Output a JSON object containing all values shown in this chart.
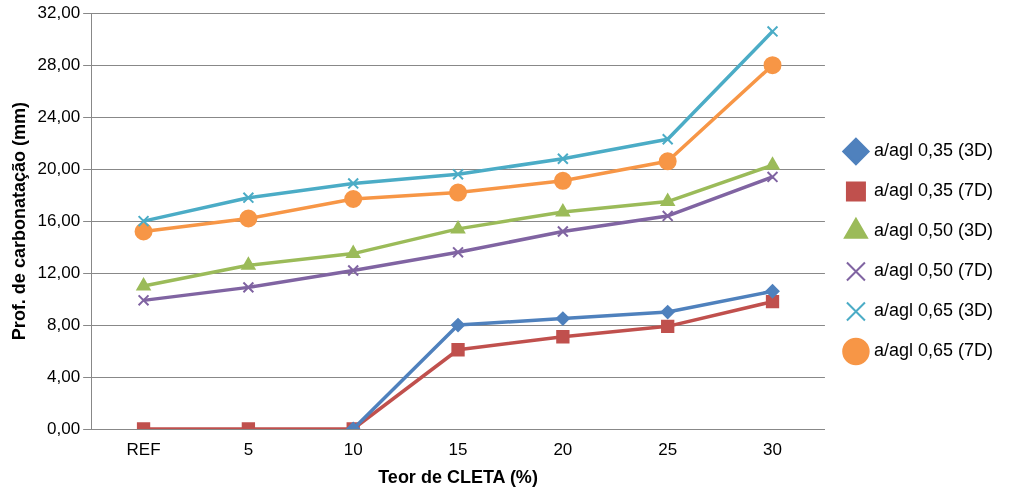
{
  "chart_data": {
    "type": "line",
    "xlabel": "Teor de CLETA (%)",
    "ylabel": "Prof. de carbonatação (mm)",
    "categories": [
      "REF",
      "5",
      "10",
      "15",
      "20",
      "25",
      "30"
    ],
    "series": [
      {
        "name": "a/agl 0,35 (3D)",
        "color": "#4f81bd",
        "marker": "diamond",
        "values": [
          null,
          null,
          0,
          8.0,
          8.5,
          9.0,
          10.6
        ]
      },
      {
        "name": "a/agl 0,35 (7D)",
        "color": "#c0504d",
        "marker": "square",
        "values": [
          0,
          0,
          0,
          6.1,
          7.1,
          7.9,
          9.8
        ]
      },
      {
        "name": "a/agl 0,50 (3D)",
        "color": "#9bbb59",
        "marker": "triangle",
        "values": [
          11.0,
          12.6,
          13.5,
          15.4,
          16.7,
          17.5,
          20.3
        ]
      },
      {
        "name": "a/agl 0,50 (7D)",
        "color": "#8064a2",
        "marker": "cross",
        "values": [
          9.9,
          10.9,
          12.2,
          13.6,
          15.2,
          16.4,
          19.4
        ]
      },
      {
        "name": "a/agl 0,65 (3D)",
        "color": "#4bacc6",
        "marker": "cross",
        "values": [
          16.0,
          17.8,
          18.9,
          19.6,
          20.8,
          22.3,
          30.6
        ]
      },
      {
        "name": "a/agl 0,65 (7D)",
        "color": "#f79646",
        "marker": "circle",
        "values": [
          15.2,
          16.2,
          17.7,
          18.2,
          19.1,
          20.6,
          28.0
        ]
      }
    ],
    "ylim": [
      0,
      32
    ],
    "yticks": [
      {
        "value": 0,
        "label": "0,00"
      },
      {
        "value": 4,
        "label": "4,00"
      },
      {
        "value": 8,
        "label": "8,00"
      },
      {
        "value": 12,
        "label": "12,00"
      },
      {
        "value": 16,
        "label": "16,00"
      },
      {
        "value": 20,
        "label": "20,00"
      },
      {
        "value": 24,
        "label": "24,00"
      },
      {
        "value": 28,
        "label": "28,00"
      },
      {
        "value": 32,
        "label": "32,00"
      }
    ],
    "grid": "y",
    "legend": "right"
  }
}
